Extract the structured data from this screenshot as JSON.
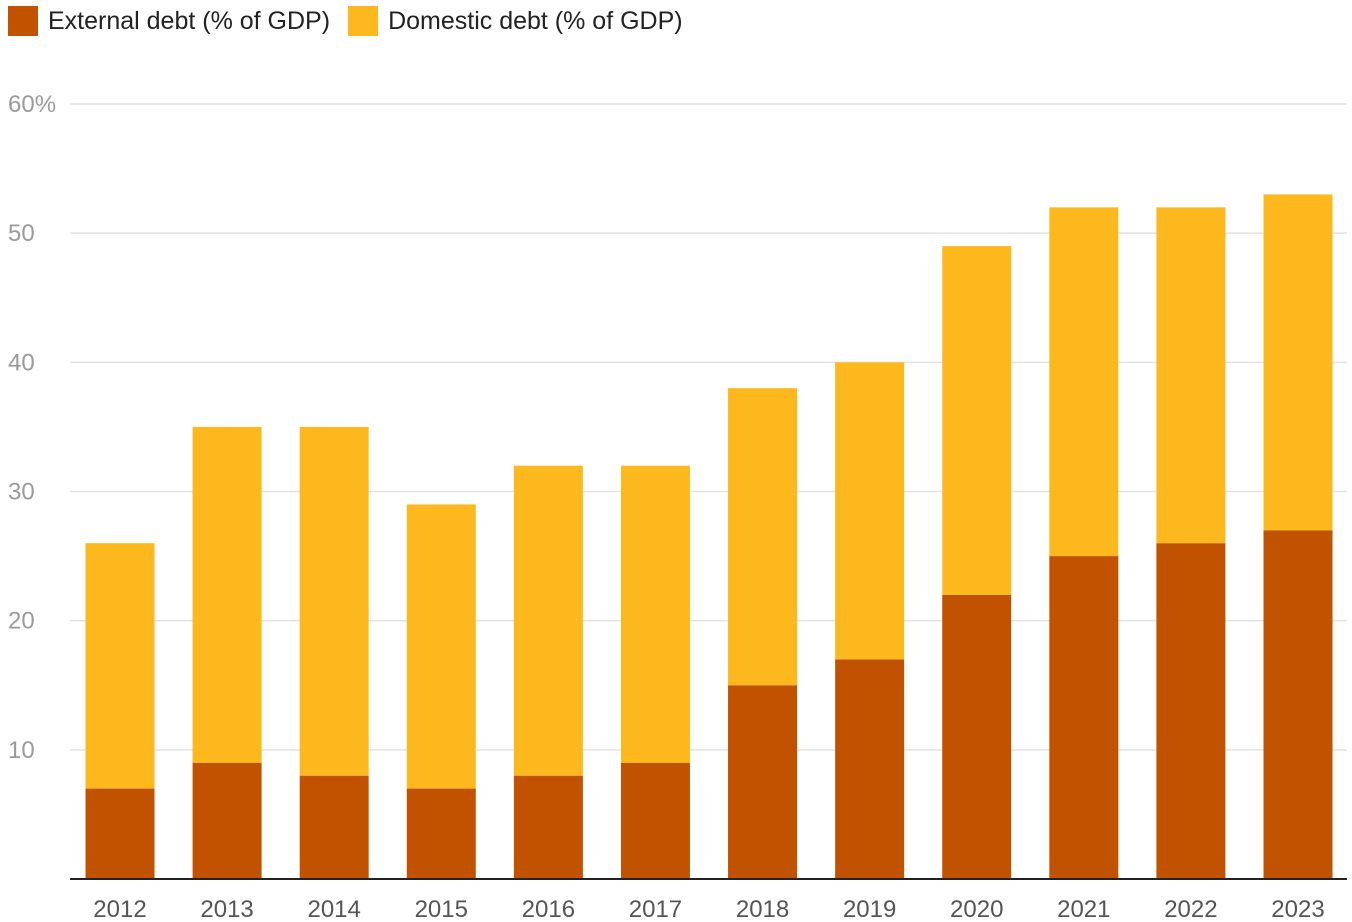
{
  "chart_data": {
    "type": "bar",
    "stacked": true,
    "categories": [
      "2012",
      "2013",
      "2014",
      "2015",
      "2016",
      "2017",
      "2018",
      "2019",
      "2020",
      "2021",
      "2022",
      "2023"
    ],
    "series": [
      {
        "name": "External debt (% of GDP)",
        "color": "#c05200",
        "values": [
          7,
          9,
          8,
          7,
          8,
          9,
          15,
          17,
          22,
          25,
          26,
          27
        ]
      },
      {
        "name": "Domestic debt (% of GDP)",
        "color": "#fdb81e",
        "values": [
          19,
          26,
          27,
          22,
          24,
          23,
          23,
          23,
          27,
          27,
          26,
          26
        ]
      }
    ],
    "ylim": [
      0,
      60
    ],
    "yticks": [
      10,
      20,
      30,
      40,
      50,
      60
    ],
    "ytick_labels": [
      "10",
      "20",
      "30",
      "40",
      "50",
      "60%"
    ],
    "grid": true,
    "legend_position": "top-left",
    "title": "",
    "xlabel": "",
    "ylabel": ""
  }
}
